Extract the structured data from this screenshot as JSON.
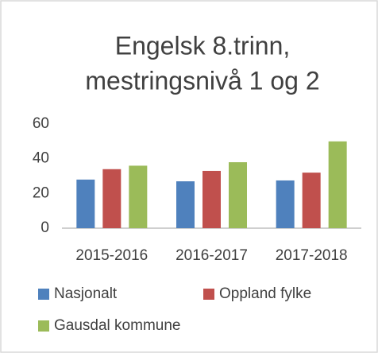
{
  "chart_data": {
    "type": "bar",
    "title": [
      "Engelsk 8.trinn,",
      "mestringsnivå 1 og 2"
    ],
    "categories": [
      "2015-2016",
      "2016-2017",
      "2017-2018"
    ],
    "series": [
      {
        "name": "Nasjonalt",
        "color": "#4f81bd",
        "values": [
          28,
          27,
          27.5
        ]
      },
      {
        "name": "Oppland fylke",
        "color": "#c0504d",
        "values": [
          34,
          33,
          32
        ]
      },
      {
        "name": "Gausdal kommune",
        "color": "#9bbb59",
        "values": [
          36,
          38,
          50
        ]
      }
    ],
    "ylim": [
      0,
      60
    ],
    "yticks": [
      0,
      20,
      40,
      60
    ],
    "grid": false
  }
}
